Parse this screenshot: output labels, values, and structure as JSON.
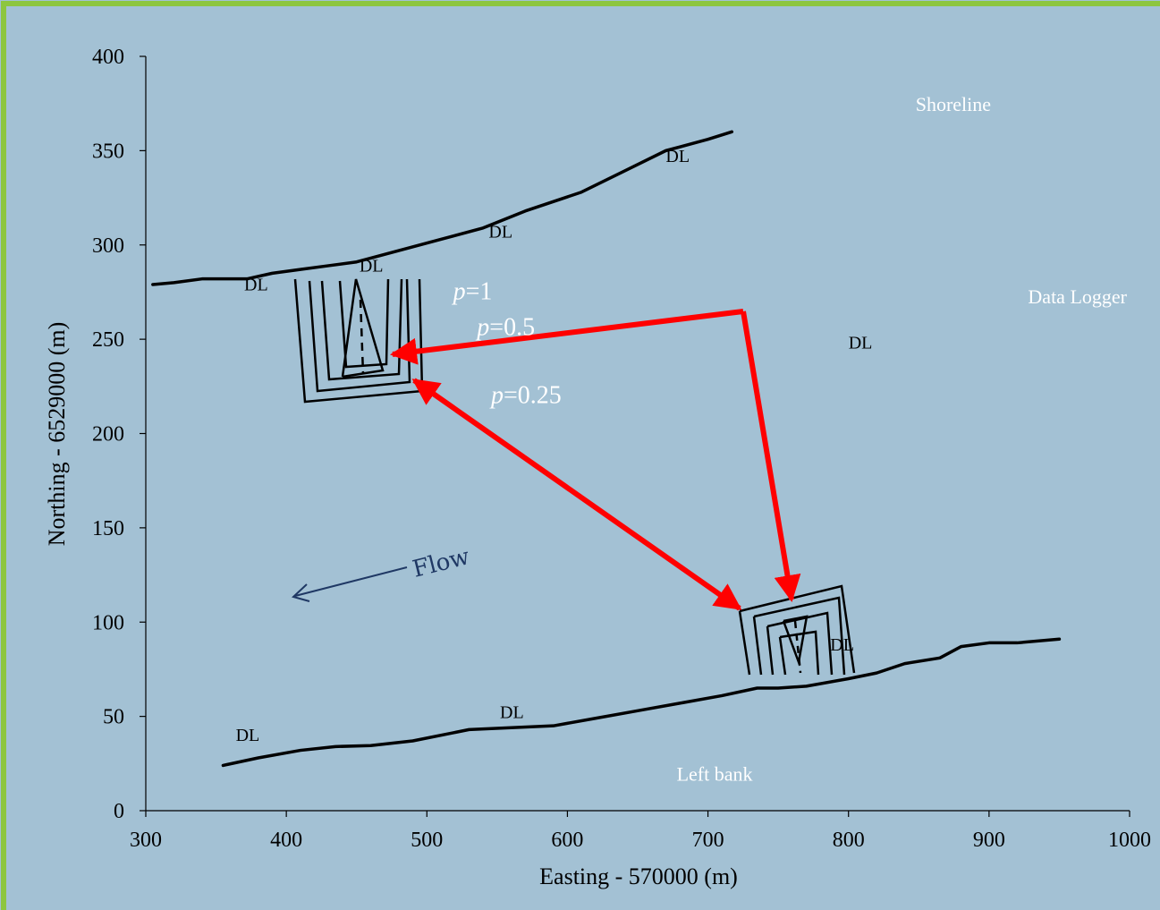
{
  "colors": {
    "background": "#a3c1d4",
    "frame_border": "#8dc63f",
    "arrow": "#ff0000",
    "flow_arrow": "#1f3864",
    "line": "#000000",
    "label": "#ffffff"
  },
  "chart_data": {
    "type": "scatter",
    "xlabel": "Easting - 570000 (m)",
    "ylabel": "Northing - 6529000 (m)",
    "xlim": [
      300,
      1000
    ],
    "ylim": [
      0,
      400
    ],
    "xticks": [
      300,
      400,
      500,
      600,
      700,
      800,
      900,
      1000
    ],
    "yticks": [
      0,
      50,
      100,
      150,
      200,
      250,
      300,
      350,
      400
    ],
    "xtick_labels": [
      "300",
      "400",
      "500",
      "600",
      "700",
      "800",
      "900",
      "1000"
    ],
    "ytick_labels": [
      "0",
      "50",
      "100",
      "150",
      "200",
      "250",
      "300",
      "350",
      "400"
    ],
    "grid": false,
    "series": [
      {
        "name": "Shoreline",
        "x": [
          305,
          320,
          340,
          355,
          372,
          390,
          410,
          430,
          450,
          480,
          510,
          540,
          570,
          610,
          640,
          670,
          700,
          717
        ],
        "y": [
          279,
          280,
          282,
          282,
          282,
          285,
          287,
          289,
          291,
          297,
          303,
          309,
          318,
          328,
          339,
          350,
          356,
          360
        ]
      },
      {
        "name": "Left bank",
        "x": [
          355,
          380,
          410,
          435,
          460,
          490,
          530,
          560,
          590,
          620,
          650,
          680,
          710,
          735,
          750,
          770,
          800,
          820,
          840,
          865,
          880,
          900,
          920,
          950
        ],
        "y": [
          24,
          28,
          32,
          34,
          34.5,
          37,
          43,
          44,
          45,
          49,
          53,
          57,
          61,
          65,
          65,
          66,
          70,
          73,
          78,
          81,
          87,
          89,
          89,
          91
        ]
      }
    ],
    "data_loggers": [
      {
        "label": "DL",
        "x": 370,
        "y": 276
      },
      {
        "label": "DL",
        "x": 452,
        "y": 286
      },
      {
        "label": "DL",
        "x": 544,
        "y": 304
      },
      {
        "label": "DL",
        "x": 670,
        "y": 344
      },
      {
        "label": "DL",
        "x": 800,
        "y": 245
      },
      {
        "label": "DL",
        "x": 364,
        "y": 37
      },
      {
        "label": "DL",
        "x": 552,
        "y": 49
      },
      {
        "label": "DL",
        "x": 787,
        "y": 85
      }
    ],
    "probability_labels": [
      {
        "prefix": "p",
        "text": "=1",
        "x": 525,
        "y": 275
      },
      {
        "prefix": "p",
        "text": "=0.5",
        "x": 542,
        "y": 256
      },
      {
        "prefix": "p",
        "text": "=0.25",
        "x": 552,
        "y": 220
      }
    ],
    "legend_labels": [
      {
        "text": "Shoreline",
        "x": 835,
        "y": 370
      },
      {
        "text": "Data Logger",
        "x": 915,
        "y": 268
      },
      {
        "text": "Left bank",
        "x": 665,
        "y": 15
      }
    ],
    "flow_label": "Flow"
  }
}
